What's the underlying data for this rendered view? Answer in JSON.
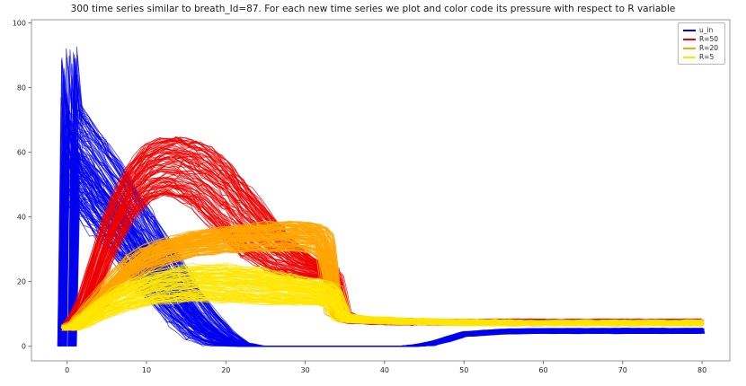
{
  "chart_data": {
    "type": "line",
    "title": "300 time series similar to breath_Id=87. For each new time series we plot and color code its pressure with respect to R variable",
    "xlabel": "",
    "ylabel": "",
    "xlim": [
      -4.5,
      83.5
    ],
    "ylim": [
      -4.5,
      101
    ],
    "xticks": [
      0,
      10,
      20,
      30,
      40,
      50,
      60,
      70,
      80
    ],
    "yticks": [
      0,
      20,
      40,
      60,
      80,
      100
    ],
    "grid": false,
    "legend_position": "upper right",
    "legend": [
      {
        "label": "u_in",
        "color": "#0000ee"
      },
      {
        "label": "R=50",
        "color": "#ee0000"
      },
      {
        "label": "R=20",
        "color": "#ffa500"
      },
      {
        "label": "R=5",
        "color": "#ffe600"
      }
    ],
    "series_groups": [
      {
        "name": "u_in",
        "color": "#0000ee",
        "count": 160,
        "opacity": 0.65,
        "noise": 0.15,
        "x_jitter": 1.2,
        "clamp_min": 0,
        "x": [
          0,
          0.4,
          1,
          2,
          4,
          6,
          8,
          10,
          12,
          14,
          16,
          18,
          20,
          22,
          24,
          26,
          30,
          34,
          38,
          42,
          44,
          46,
          48,
          50,
          55,
          60,
          70,
          80
        ],
        "lo": [
          0,
          40,
          42,
          40,
          34,
          28,
          22,
          16,
          11,
          6,
          2,
          0,
          0,
          0,
          0,
          0,
          0,
          0,
          0,
          0,
          0,
          0.3,
          1.5,
          3,
          3.8,
          4,
          4,
          4
        ],
        "hi": [
          0,
          93,
          75,
          72,
          65,
          58,
          50,
          42,
          34,
          26,
          18,
          11,
          5,
          1,
          0,
          0,
          0,
          0,
          0,
          0,
          0.5,
          1.5,
          3,
          4.5,
          5.3,
          5.5,
          5.5,
          5.5
        ]
      },
      {
        "name": "R=50",
        "color": "#ee0000",
        "count": 100,
        "opacity": 0.75,
        "noise": 0.35,
        "x_jitter": 0.8,
        "clamp_min": 0,
        "x": [
          0,
          1,
          2,
          3,
          4,
          5,
          6,
          8,
          10,
          12,
          14,
          16,
          18,
          20,
          22,
          24,
          26,
          28,
          30,
          32,
          33,
          34,
          35,
          36,
          38,
          40,
          44,
          48,
          52,
          56,
          60,
          70,
          80
        ],
        "lo": [
          5,
          6,
          9,
          14,
          20,
          26,
          31,
          40,
          45,
          47,
          46,
          43,
          38,
          33,
          28,
          25,
          22.5,
          21.5,
          21,
          21,
          21,
          8.5,
          7.5,
          7.2,
          7,
          6.9,
          6.8,
          6.8,
          6.8,
          6.8,
          6.8,
          6.8,
          6.8
        ],
        "hi": [
          6.5,
          10,
          16,
          24,
          32,
          40,
          46,
          56,
          62,
          64.5,
          65,
          64,
          62,
          58,
          52,
          46,
          40,
          34,
          29,
          26,
          25,
          24,
          11,
          9.5,
          8.8,
          8.5,
          8.3,
          8.2,
          8.2,
          8.2,
          8.2,
          8.2,
          8.2
        ]
      },
      {
        "name": "R=20",
        "color": "#ffa500",
        "count": 100,
        "opacity": 0.8,
        "noise": 0.3,
        "x_jitter": 0.8,
        "clamp_min": 0,
        "x": [
          0,
          1,
          2,
          4,
          6,
          8,
          10,
          12,
          16,
          20,
          24,
          26,
          28,
          30,
          31,
          32,
          33,
          34,
          35,
          36,
          38,
          40,
          44,
          48,
          55,
          60,
          70,
          80
        ],
        "lo": [
          5,
          5.5,
          7,
          11,
          16,
          20,
          23,
          25,
          28,
          29,
          29.5,
          29.5,
          29.5,
          29,
          28.5,
          27,
          9.5,
          8.5,
          8,
          7.8,
          7.4,
          7.2,
          7,
          6.8,
          6.6,
          6.5,
          6.5,
          6.5
        ],
        "hi": [
          6.5,
          8,
          11,
          17,
          23,
          28,
          31,
          33,
          35.5,
          37,
          38,
          38.5,
          38.5,
          38.5,
          38,
          37.5,
          36,
          11,
          10,
          9.6,
          9,
          8.8,
          8.4,
          8.2,
          8,
          7.9,
          7.9,
          7.9
        ]
      },
      {
        "name": "R=5",
        "color": "#ffe600",
        "count": 100,
        "opacity": 0.8,
        "noise": 0.3,
        "x_jitter": 0.8,
        "clamp_min": 0,
        "x": [
          0,
          1,
          2,
          4,
          6,
          8,
          10,
          12,
          14,
          16,
          20,
          24,
          28,
          30,
          32,
          33,
          34,
          35,
          36,
          38,
          40,
          44,
          48,
          55,
          60,
          70,
          80
        ],
        "lo": [
          5,
          5.2,
          6,
          8,
          10,
          11.5,
          12.5,
          13.2,
          13.6,
          13.8,
          13.5,
          13,
          12.8,
          12.8,
          12.5,
          12.3,
          8,
          7.5,
          7.3,
          7.1,
          7,
          6.8,
          6.6,
          6.5,
          6.5,
          6.5,
          6.5
        ],
        "hi": [
          6.5,
          7.5,
          10,
          14.5,
          18,
          20.5,
          22.5,
          24,
          25,
          25.5,
          25.5,
          24.5,
          22.5,
          21.5,
          20.5,
          20,
          19,
          10.5,
          9.8,
          9.2,
          9,
          8.6,
          8.3,
          8.1,
          8,
          8,
          8
        ]
      }
    ]
  }
}
